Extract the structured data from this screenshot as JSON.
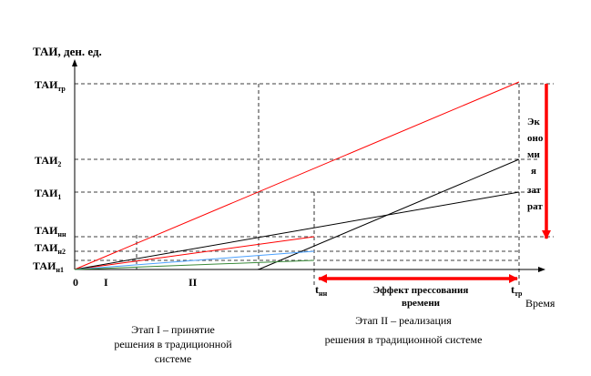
{
  "axis": {
    "y_label": "ТАИ, ден. ед.",
    "x_label": "Время"
  },
  "y_ticks": [
    {
      "main": "ТАИ",
      "sub": "тр"
    },
    {
      "main": "ТАИ",
      "sub": "2"
    },
    {
      "main": "ТАИ",
      "sub": "1"
    },
    {
      "main": "ТАИ",
      "sub": "нн"
    },
    {
      "main": "ТАИ",
      "sub": "н2"
    },
    {
      "main": "ТАИ",
      "sub": "н1"
    }
  ],
  "x_marks": {
    "origin": "0",
    "stage_i": "I",
    "stage_ii": "II",
    "t_nn": {
      "main": "t",
      "sub": "нн"
    },
    "t_tr": {
      "main": "t",
      "sub": "тр"
    }
  },
  "annotations": {
    "savings_lines": [
      "Эк",
      "оно",
      "ми",
      "я",
      "зат",
      "рат"
    ],
    "compression_line1": "Эффект прессования",
    "compression_line2": "времени"
  },
  "captions": {
    "stage1_line1": "Этап I – принятие",
    "stage1_line2": "решения в традиционной",
    "stage1_line3": "системе",
    "stage2_line1": "Этап II – реализация",
    "stage2_line2": "решения в традиционной системе"
  },
  "colors": {
    "axis": "#000000",
    "red": "#ff0000",
    "blue": "#4aa0ff",
    "green": "#3a8a3a"
  }
}
